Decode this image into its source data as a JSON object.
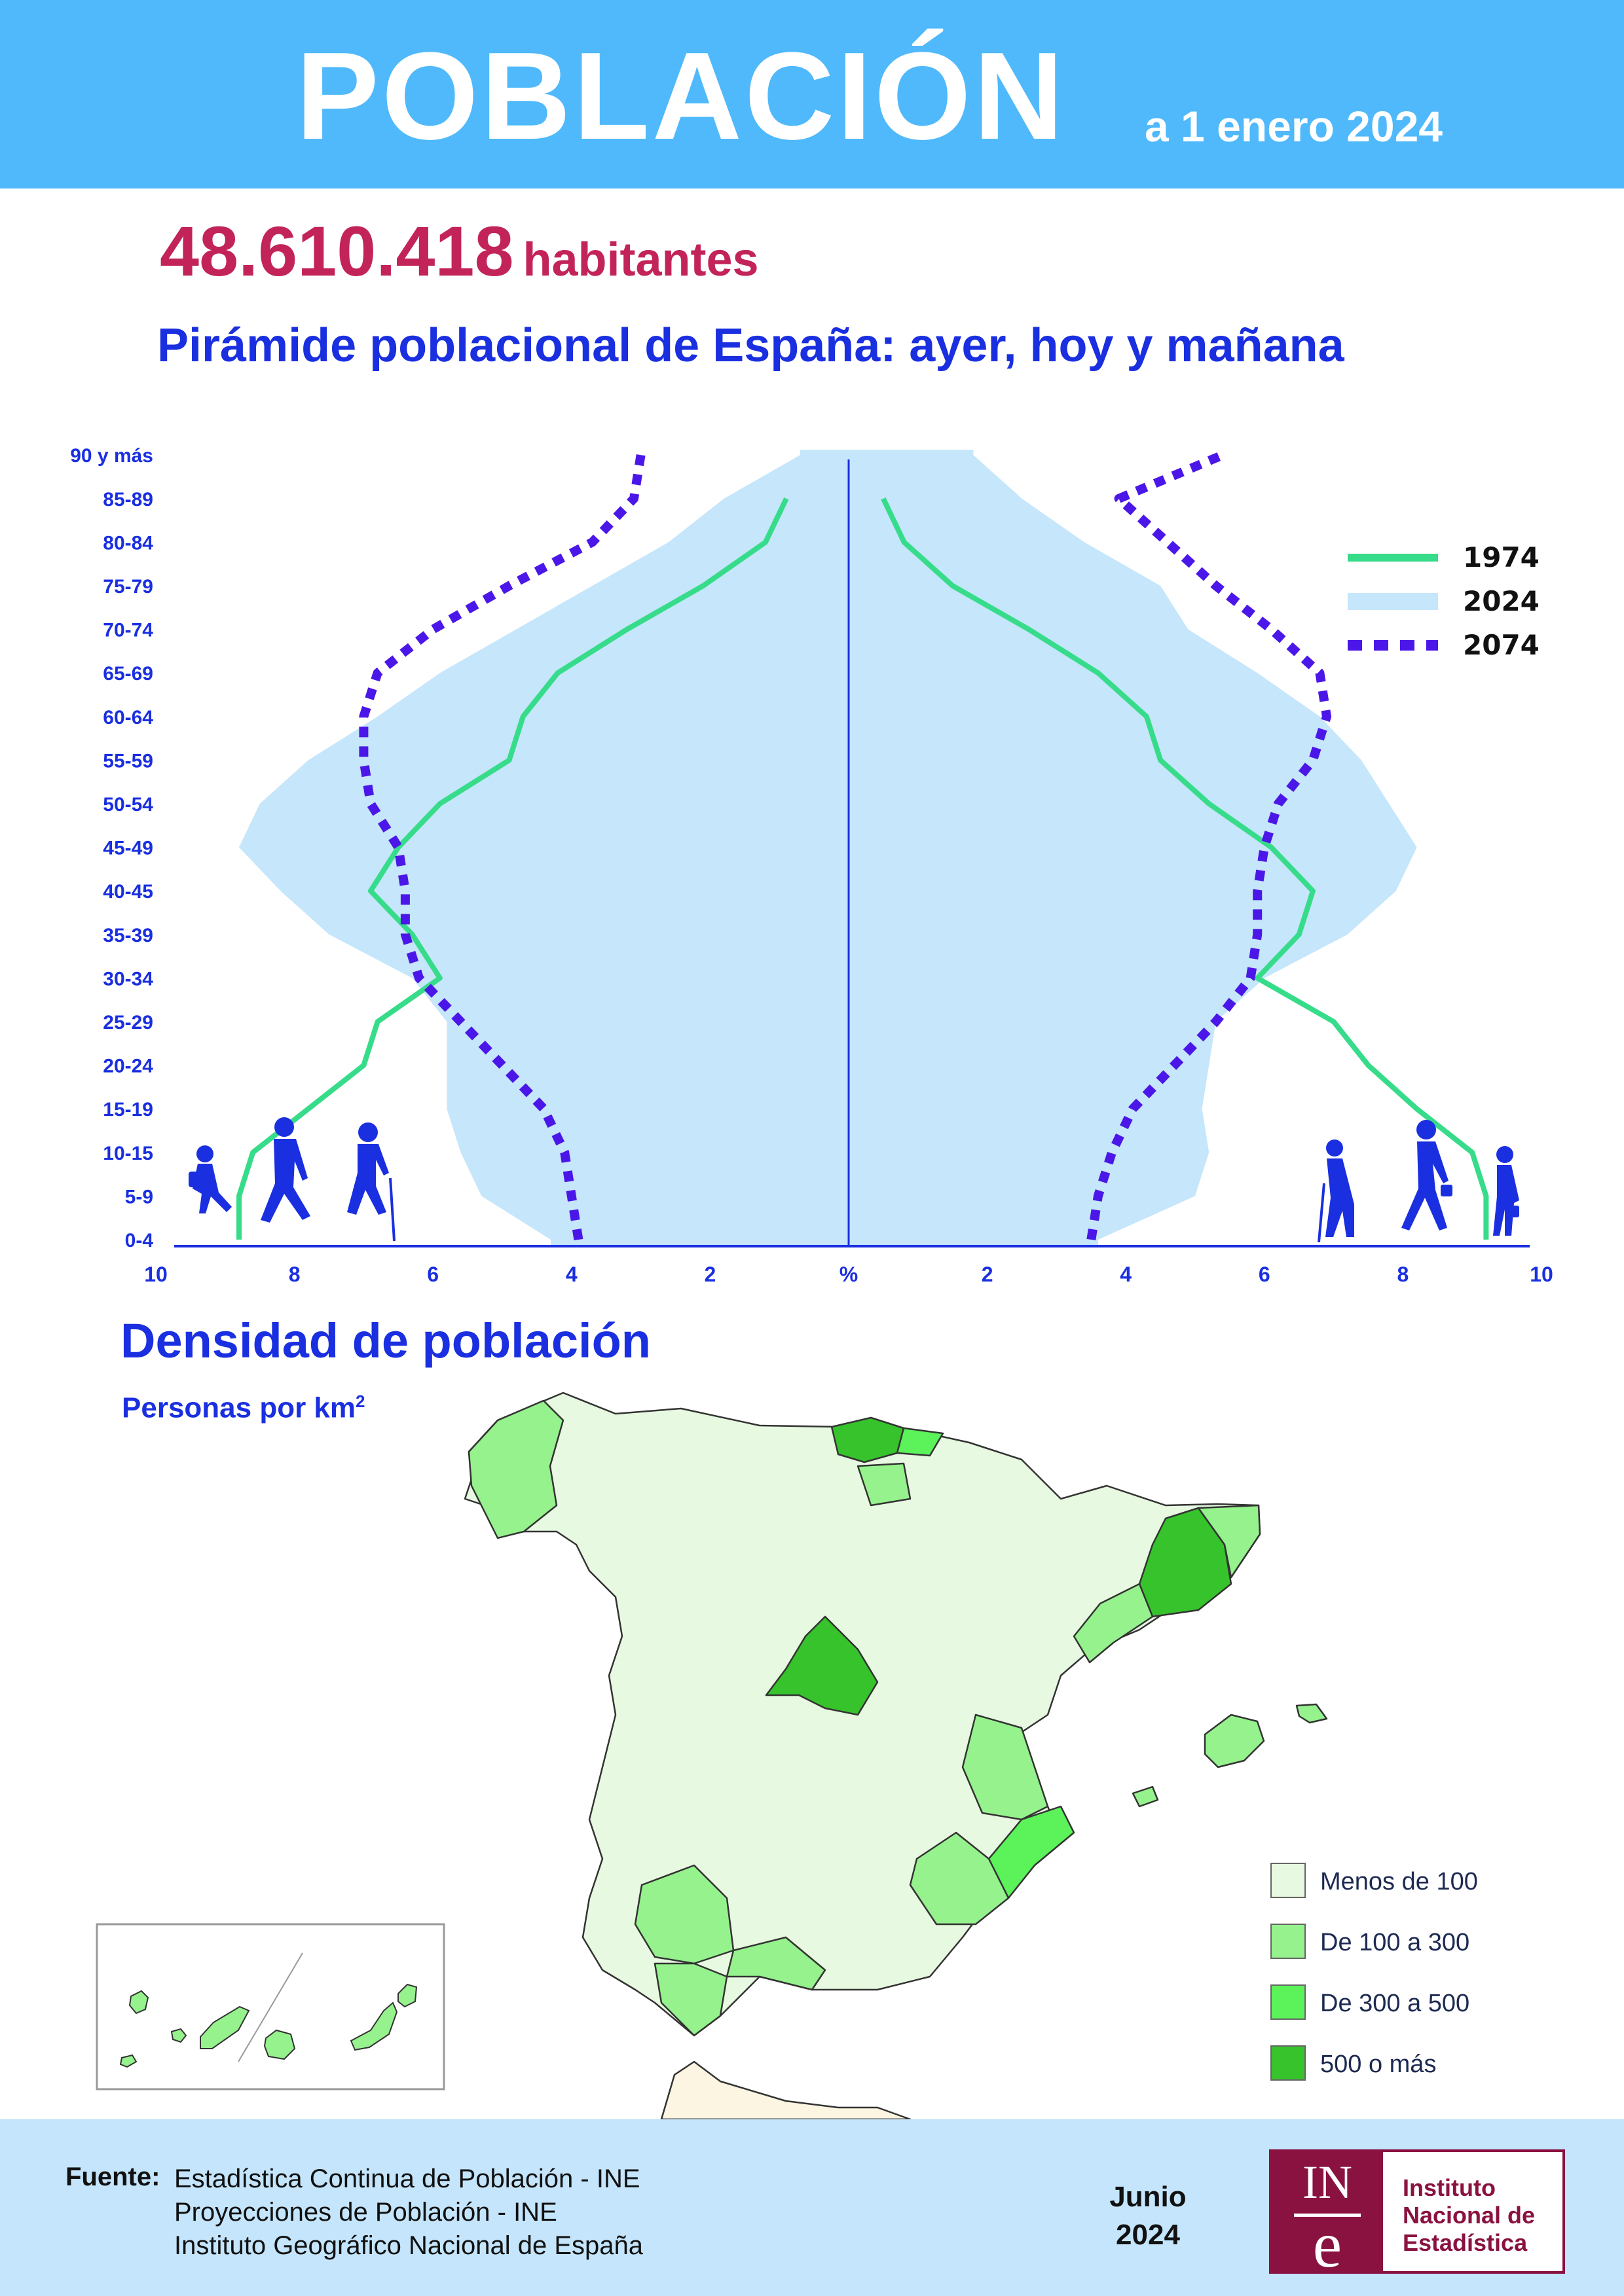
{
  "header": {
    "title": "POBLACIÓN",
    "date": "a 1 enero 2024"
  },
  "population": {
    "value": "48.610.418",
    "unit": "habitantes"
  },
  "pyramid_title": "Pirámide poblacional de España: ayer, hoy y mañana",
  "chart_data": {
    "type": "area",
    "title": "Pirámide poblacional de España: ayer, hoy y mañana",
    "xlabel": "%",
    "x_tick_labels": [
      "10",
      "8",
      "6",
      "4",
      "2",
      "%",
      "2",
      "4",
      "6",
      "8",
      "10"
    ],
    "xlim": [
      0,
      10
    ],
    "categories": [
      "0-4",
      "5-9",
      "10-15",
      "15-19",
      "20-24",
      "25-29",
      "30-34",
      "35-39",
      "40-45",
      "45-49",
      "50-54",
      "55-59",
      "60-64",
      "65-69",
      "70-74",
      "75-79",
      "80-84",
      "85-89",
      "90 y más"
    ],
    "legend_position": "top-right",
    "series": [
      {
        "name": "1974",
        "style": "line",
        "color": "#37dc8a",
        "left": [
          8.8,
          8.8,
          8.6,
          7.8,
          7.0,
          6.8,
          5.9,
          6.3,
          6.9,
          6.5,
          5.9,
          4.9,
          4.7,
          4.2,
          3.2,
          2.1,
          1.2,
          0.9,
          null
        ],
        "right": [
          9.2,
          9.2,
          9.0,
          8.2,
          7.5,
          7.0,
          5.9,
          6.5,
          6.7,
          6.1,
          5.2,
          4.5,
          4.3,
          3.6,
          2.6,
          1.5,
          0.8,
          0.5,
          null
        ]
      },
      {
        "name": "2024",
        "style": "area",
        "color": "#c5e6fb",
        "left": [
          4.3,
          5.3,
          5.6,
          5.8,
          5.8,
          5.8,
          6.3,
          7.5,
          8.2,
          8.8,
          8.5,
          7.8,
          6.8,
          5.9,
          4.8,
          3.7,
          2.6,
          1.8,
          0.7
        ],
        "right": [
          3.6,
          5.0,
          5.2,
          5.1,
          5.2,
          5.3,
          6.0,
          7.2,
          7.9,
          8.2,
          7.8,
          7.4,
          6.8,
          5.9,
          4.9,
          4.5,
          3.4,
          2.5,
          1.8
        ]
      },
      {
        "name": "2074",
        "style": "dotted",
        "color": "#4b17e8",
        "left": [
          3.9,
          4.0,
          4.1,
          4.4,
          5.0,
          5.6,
          6.2,
          6.4,
          6.4,
          6.5,
          6.9,
          7.0,
          7.0,
          6.8,
          6.0,
          4.9,
          3.7,
          3.1,
          3.0
        ],
        "right": [
          3.5,
          3.6,
          3.8,
          4.1,
          4.7,
          5.3,
          5.8,
          5.9,
          5.9,
          6.0,
          6.2,
          6.7,
          6.9,
          6.8,
          6.1,
          5.3,
          4.6,
          3.9,
          5.4
        ]
      }
    ]
  },
  "density": {
    "title": "Densidad de población",
    "subtitle": "Personas por km",
    "superscript": "2",
    "legend": [
      {
        "label": "Menos de 100",
        "color": "#e7f9e0"
      },
      {
        "label": "De 100 a 300",
        "color": "#95f28d"
      },
      {
        "label": "De 300 a 500",
        "color": "#5bf25a"
      },
      {
        "label": "500 o más",
        "color": "#37c32c"
      }
    ]
  },
  "footer": {
    "source_label": "Fuente:",
    "sources": [
      "Estadística Continua de Población - INE",
      "Proyecciones de Población - INE",
      "Instituto Geográfico Nacional de España"
    ],
    "month": "Junio",
    "year": "2024",
    "logo_letters": "IN",
    "logo_e": "e",
    "org_name": [
      "Instituto",
      "Nacional de",
      "Estadística"
    ]
  }
}
